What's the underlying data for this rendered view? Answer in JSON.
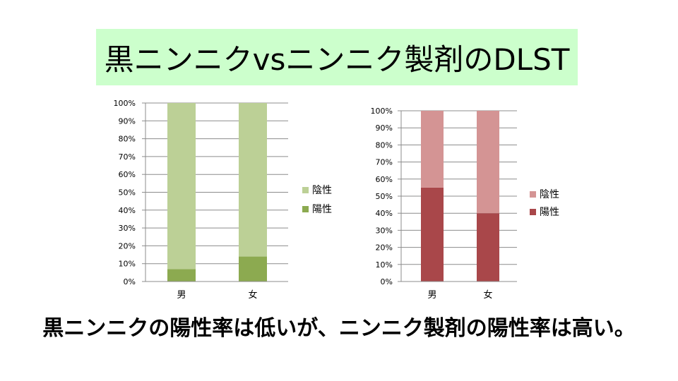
{
  "title": "黒ニンニクvsニンニク製剤のDLST",
  "caption": "黒ニンニクの陽性率は低いが、ニンニク製剤の陽性率は高い。",
  "chart_data": [
    {
      "type": "bar",
      "stacked": true,
      "categories": [
        "男",
        "女"
      ],
      "series": [
        {
          "name": "陽性",
          "values": [
            7,
            14
          ],
          "color": "#8caa50"
        },
        {
          "name": "陰性",
          "values": [
            93,
            86
          ],
          "color": "#bcd096"
        }
      ],
      "y_ticks": [
        "0%",
        "10%",
        "20%",
        "30%",
        "40%",
        "50%",
        "60%",
        "70%",
        "80%",
        "90%",
        "100%"
      ],
      "ylim": [
        0,
        100
      ],
      "legend": [
        "陰性",
        "陽性"
      ],
      "legend_position": "right"
    },
    {
      "type": "bar",
      "stacked": true,
      "categories": [
        "男",
        "女"
      ],
      "series": [
        {
          "name": "陽性",
          "values": [
            55,
            40
          ],
          "color": "#a9474a"
        },
        {
          "name": "陰性",
          "values": [
            45,
            60
          ],
          "color": "#d49494"
        }
      ],
      "y_ticks": [
        "0%",
        "10%",
        "20%",
        "30%",
        "40%",
        "50%",
        "60%",
        "70%",
        "80%",
        "90%",
        "100%"
      ],
      "ylim": [
        0,
        100
      ],
      "legend": [
        "陰性",
        "陽性"
      ],
      "legend_position": "right"
    }
  ]
}
